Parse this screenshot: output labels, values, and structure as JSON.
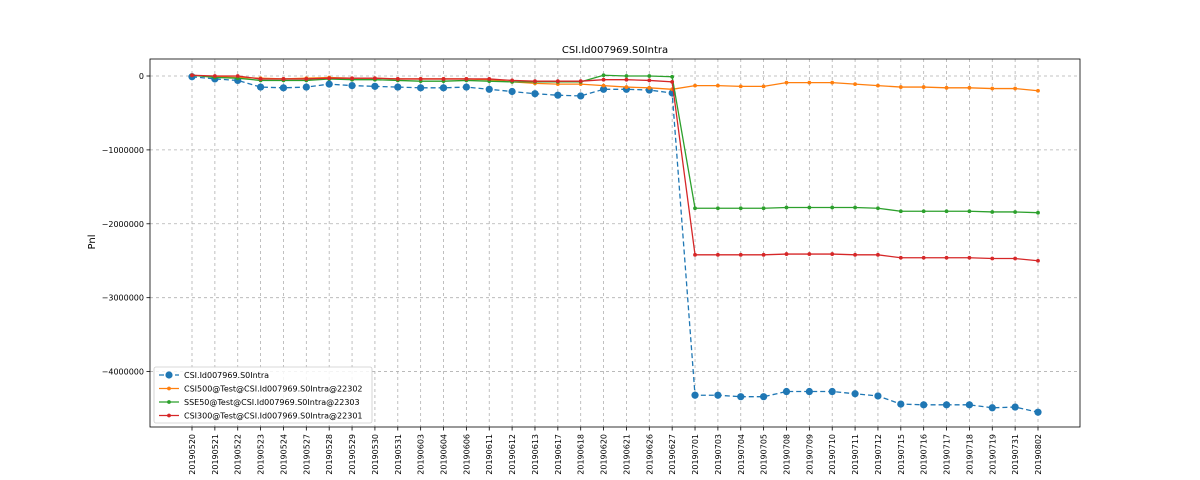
{
  "chart_data": {
    "type": "line",
    "title": "CSI.Id007969.S0Intra",
    "xlabel": "",
    "ylabel": "Pnl",
    "ylim": [
      -4750000,
      230000
    ],
    "yticks": [
      0,
      -1000000,
      -2000000,
      -3000000,
      -4000000
    ],
    "ytick_labels": [
      "0",
      "−1000000",
      "−2000000",
      "−3000000",
      "−4000000"
    ],
    "grid": true,
    "legend_position": "lower-left",
    "categories": [
      "20190520",
      "20190521",
      "20190522",
      "20190523",
      "20190524",
      "20190527",
      "20190528",
      "20190529",
      "20190530",
      "20190531",
      "20190603",
      "20190604",
      "20190606",
      "20190611",
      "20190612",
      "20190613",
      "20190617",
      "20190618",
      "20190620",
      "20190621",
      "20190626",
      "20190627",
      "20190701",
      "20190703",
      "20190704",
      "20190705",
      "20190708",
      "20190709",
      "20190710",
      "20190711",
      "20190712",
      "20190715",
      "20190716",
      "20190717",
      "20190718",
      "20190719",
      "20190731",
      "20190802"
    ],
    "series": [
      {
        "name": "CSI.Id007969.S0Intra",
        "color": "#1f77b4",
        "style": "dashed",
        "marker": "large-circle",
        "values": [
          -10000,
          -40000,
          -60000,
          -150000,
          -160000,
          -150000,
          -110000,
          -130000,
          -140000,
          -150000,
          -160000,
          -160000,
          -150000,
          -180000,
          -210000,
          -240000,
          -260000,
          -270000,
          -180000,
          -180000,
          -190000,
          -230000,
          -4320000,
          -4320000,
          -4340000,
          -4340000,
          -4270000,
          -4270000,
          -4270000,
          -4300000,
          -4330000,
          -4440000,
          -4450000,
          -4450000,
          -4450000,
          -4490000,
          -4480000,
          -4550000
        ]
      },
      {
        "name": "CSI500@Test@CSI.Id007969.S0Intra@22302",
        "color": "#ff7f0e",
        "style": "solid",
        "marker": "small-circle",
        "values": [
          10000,
          -10000,
          -20000,
          -30000,
          -40000,
          -30000,
          -20000,
          -30000,
          -30000,
          -40000,
          -40000,
          -40000,
          -40000,
          -50000,
          -80000,
          -100000,
          -110000,
          -110000,
          -130000,
          -150000,
          -160000,
          -180000,
          -130000,
          -130000,
          -140000,
          -140000,
          -90000,
          -90000,
          -90000,
          -110000,
          -130000,
          -150000,
          -150000,
          -160000,
          -160000,
          -170000,
          -170000,
          -200000
        ]
      },
      {
        "name": "SSE50@Test@CSI.Id007969.S0Intra@22303",
        "color": "#2ca02c",
        "style": "solid",
        "marker": "small-circle",
        "values": [
          10000,
          -20000,
          -30000,
          -60000,
          -60000,
          -60000,
          -40000,
          -50000,
          -50000,
          -60000,
          -70000,
          -70000,
          -60000,
          -70000,
          -80000,
          -80000,
          -80000,
          -80000,
          10000,
          0,
          0,
          -10000,
          -1790000,
          -1790000,
          -1790000,
          -1790000,
          -1780000,
          -1780000,
          -1780000,
          -1780000,
          -1790000,
          -1830000,
          -1830000,
          -1830000,
          -1830000,
          -1840000,
          -1840000,
          -1850000
        ]
      },
      {
        "name": "CSI300@Test@CSI.Id007969.S0Intra@22301",
        "color": "#d62728",
        "style": "solid",
        "marker": "small-circle",
        "values": [
          10000,
          0,
          0,
          -40000,
          -40000,
          -40000,
          -30000,
          -30000,
          -30000,
          -40000,
          -40000,
          -40000,
          -40000,
          -40000,
          -60000,
          -70000,
          -70000,
          -70000,
          -50000,
          -50000,
          -60000,
          -80000,
          -2420000,
          -2420000,
          -2420000,
          -2420000,
          -2410000,
          -2410000,
          -2410000,
          -2420000,
          -2420000,
          -2460000,
          -2460000,
          -2460000,
          -2460000,
          -2470000,
          -2470000,
          -2500000
        ]
      }
    ]
  }
}
